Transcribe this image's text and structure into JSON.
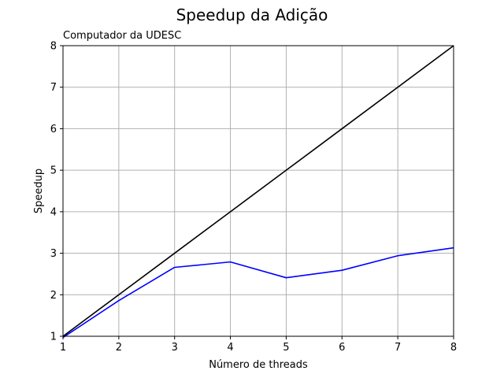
{
  "chart_data": {
    "type": "line",
    "title": "Speedup da Adição",
    "subtitle": "Computador da UDESC",
    "xlabel": "Número de threads",
    "ylabel": "Speedup",
    "xlim": [
      1,
      8
    ],
    "ylim": [
      1,
      8
    ],
    "x_ticks": [
      1,
      2,
      3,
      4,
      5,
      6,
      7,
      8
    ],
    "y_ticks": [
      1,
      2,
      3,
      4,
      5,
      6,
      7,
      8
    ],
    "grid": true,
    "series": [
      {
        "color": "#000000",
        "x": [
          1,
          2,
          3,
          4,
          5,
          6,
          7,
          8
        ],
        "y": [
          1,
          2,
          3,
          4,
          5,
          6,
          7,
          8
        ]
      },
      {
        "color": "#0000ff",
        "x": [
          1,
          2,
          3,
          4,
          5,
          6,
          7,
          8
        ],
        "y": [
          0.97,
          1.86,
          2.66,
          2.79,
          2.41,
          2.59,
          2.94,
          3.13
        ]
      }
    ]
  }
}
